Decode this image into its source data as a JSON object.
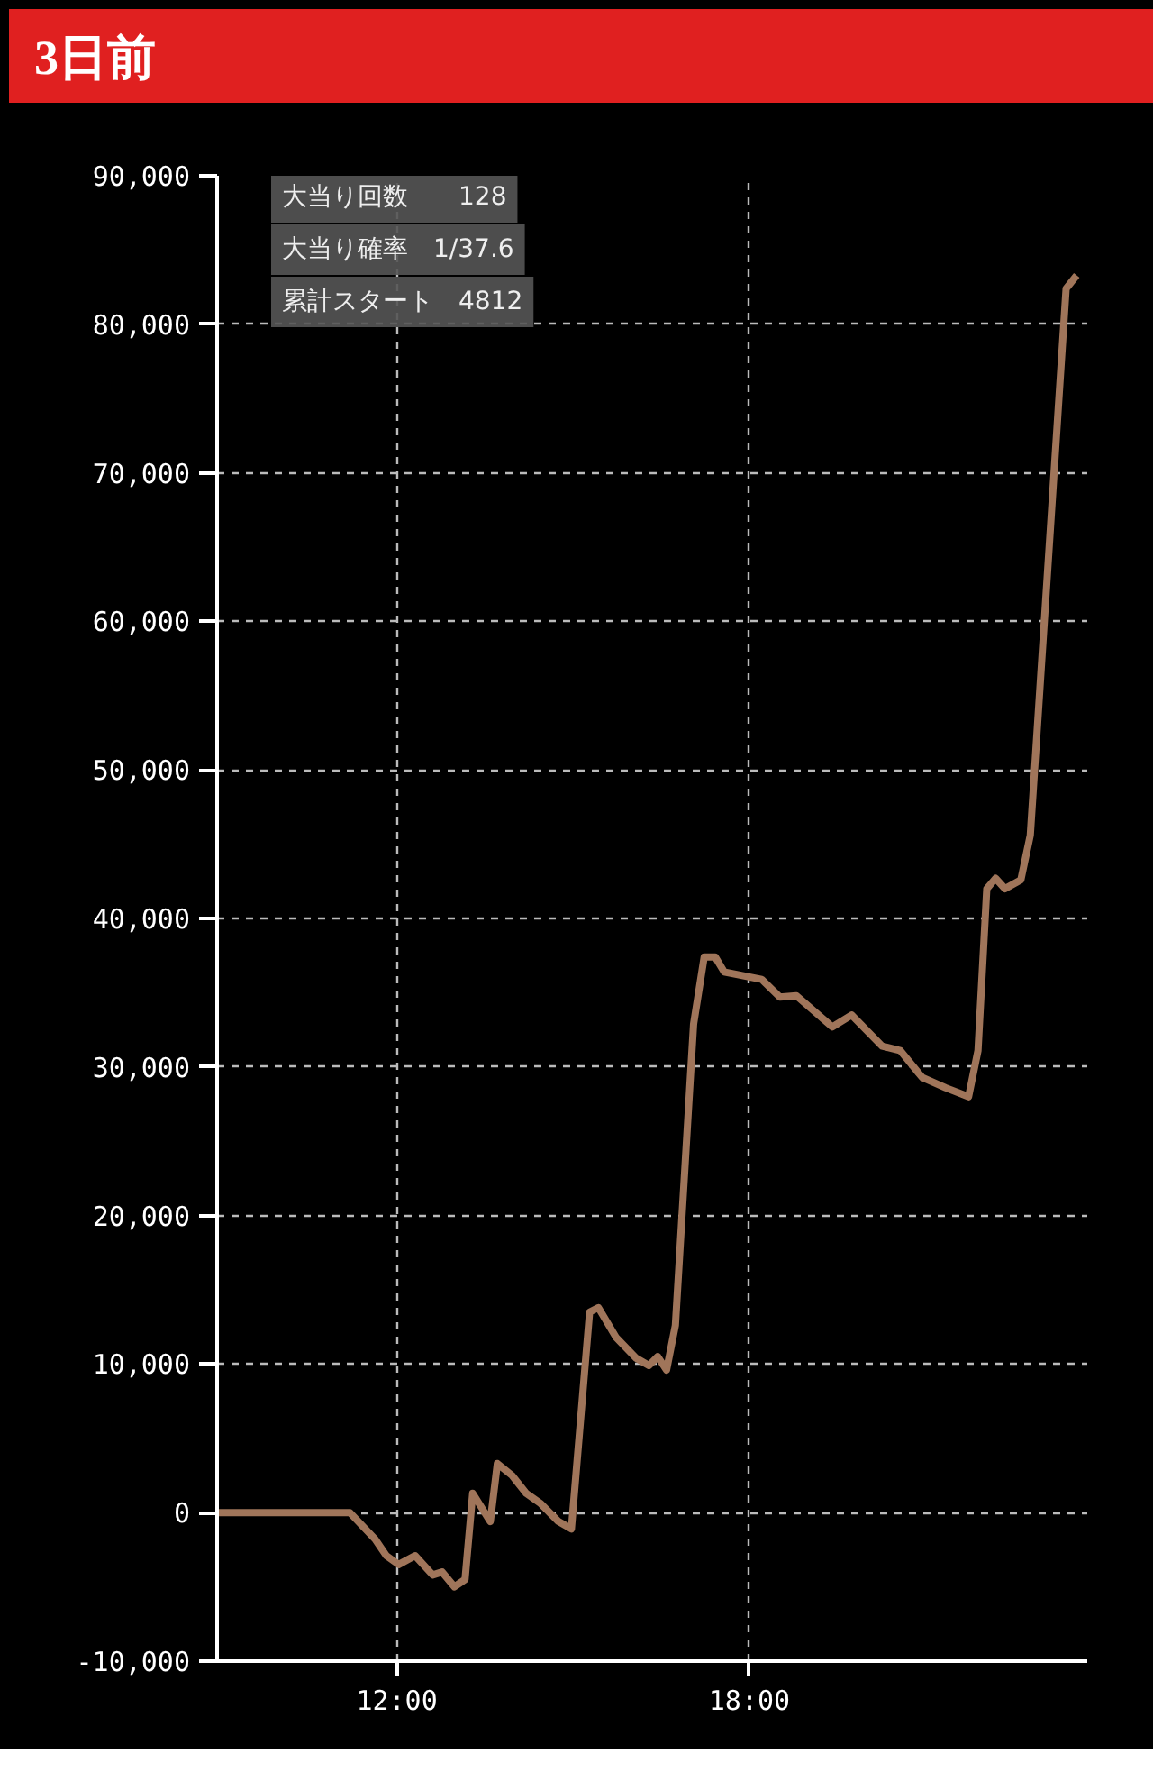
{
  "chart_data": {
    "type": "line",
    "title": "3日前",
    "annotations": [
      "大当り回数　　128",
      "大当り確率　1/37.6",
      "累計スタート　4812"
    ],
    "x": [
      8.94,
      11.2,
      11.63,
      11.82,
      12.03,
      12.31,
      12.61,
      12.77,
      12.98,
      13.16,
      13.29,
      13.59,
      13.71,
      13.96,
      14.2,
      14.45,
      14.75,
      14.97,
      15.28,
      15.43,
      15.73,
      16.07,
      16.29,
      16.44,
      16.59,
      16.74,
      17.05,
      17.23,
      17.42,
      17.57,
      18.21,
      18.52,
      18.8,
      19.41,
      19.74,
      20.26,
      20.57,
      20.94,
      21.34,
      21.73,
      21.89,
      22.04,
      22.19,
      22.35,
      22.62,
      22.78,
      23.39,
      23.57
    ],
    "series": [
      {
        "color": "#a0755a",
        "values": [
          0,
          0,
          -1800,
          -2900,
          -3500,
          -2900,
          -4200,
          -4000,
          -5000,
          -4500,
          1300,
          -600,
          3300,
          2500,
          1300,
          600,
          -600,
          -1100,
          13500,
          13800,
          11800,
          10400,
          9900,
          10500,
          9600,
          12600,
          32900,
          37400,
          37400,
          36400,
          35900,
          34700,
          34800,
          32700,
          33500,
          31400,
          31100,
          29300,
          28600,
          28000,
          31100,
          42000,
          42700,
          42000,
          42600,
          45600,
          82400,
          83300
        ]
      }
    ],
    "xlim": [
      8.94,
      23.75
    ],
    "xticks": [
      {
        "value": 12,
        "label": "12:00"
      },
      {
        "value": 18,
        "label": "18:00"
      }
    ],
    "ylim": [
      -10000,
      90000
    ],
    "yticks": [
      {
        "value": -10000,
        "label": "-10,000"
      },
      0,
      {
        "value": 10000,
        "label": "10,000"
      },
      {
        "value": 20000,
        "label": "20,000"
      },
      {
        "value": 30000,
        "label": "30,000"
      },
      {
        "value": 40000,
        "label": "40,000"
      },
      {
        "value": 50000,
        "label": "50,000"
      },
      {
        "value": 60000,
        "label": "60,000"
      },
      {
        "value": 70000,
        "label": "70,000"
      },
      {
        "value": 80000,
        "label": "80,000"
      },
      {
        "value": 90000,
        "label": "90,000"
      }
    ],
    "grid": true,
    "line_style": "solid"
  }
}
